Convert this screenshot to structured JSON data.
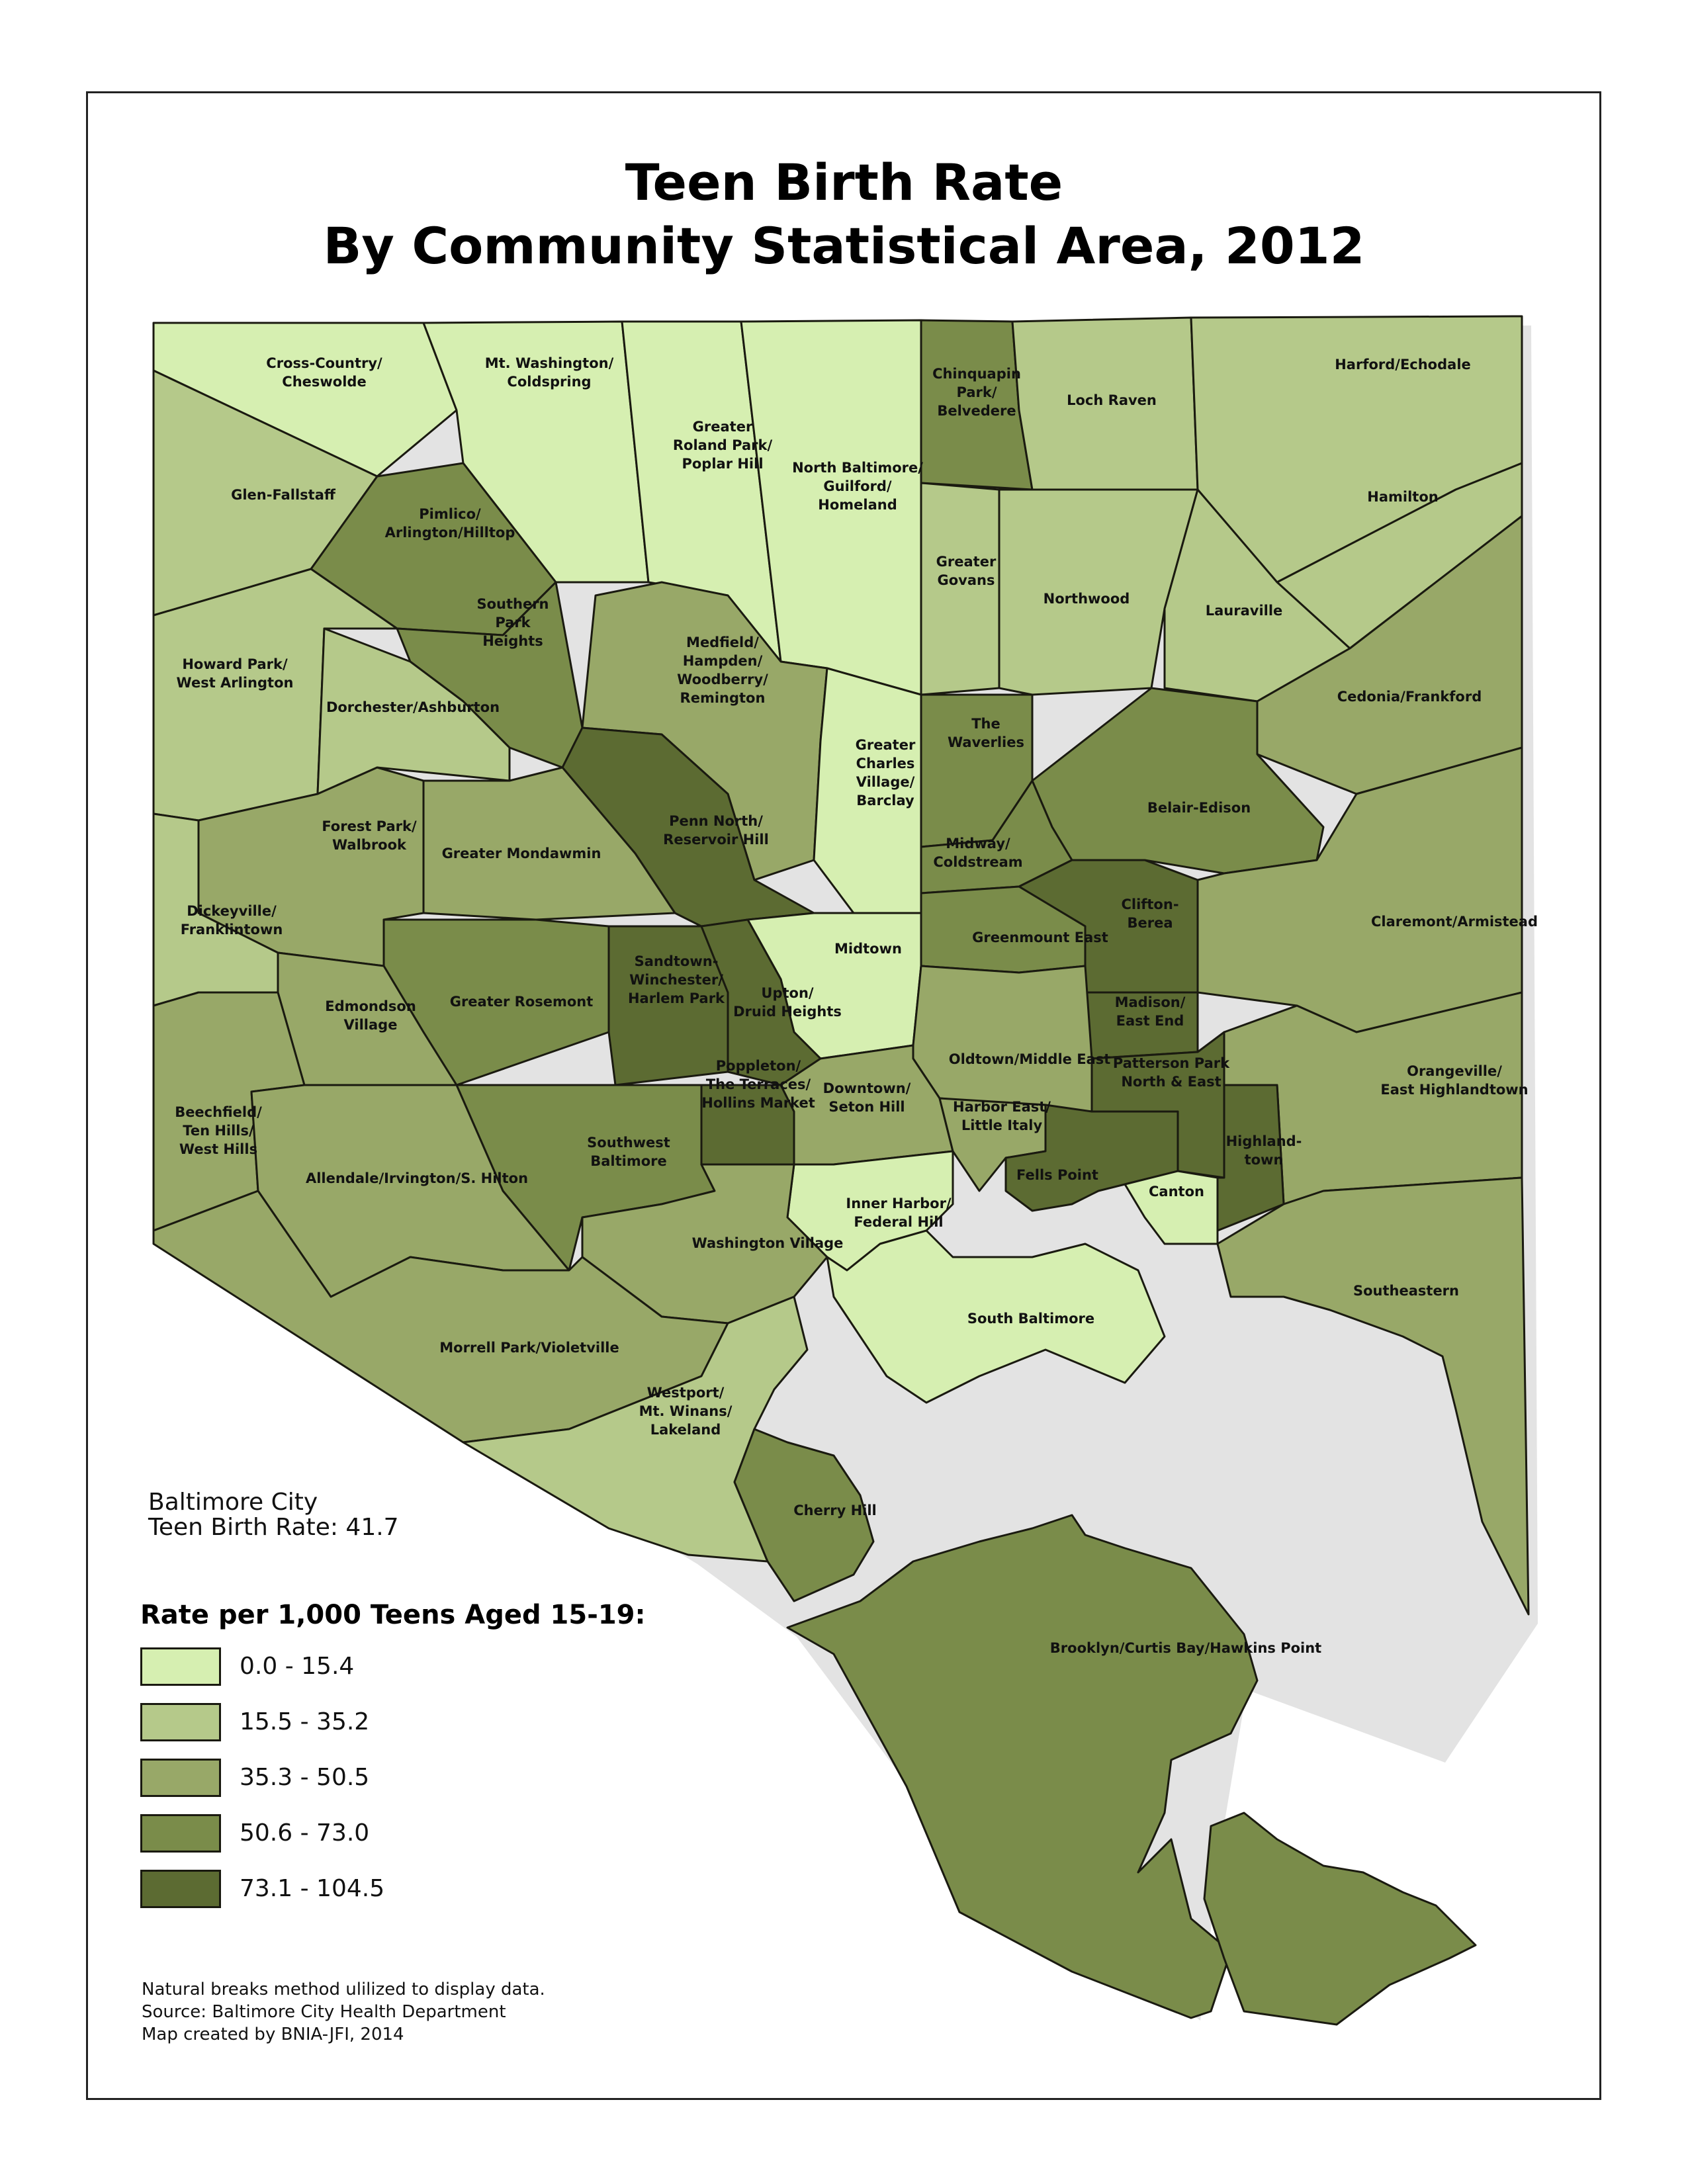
{
  "title": {
    "line1": "Teen Birth Rate",
    "line2": "By Community Statistical Area, 2012"
  },
  "city_summary": {
    "line1": "Baltimore City",
    "line2": "Teen Birth Rate: 41.7"
  },
  "legend": {
    "title": "Rate per 1,000 Teens Aged 15-19:",
    "classes": [
      {
        "label": "0.0 - 15.4",
        "color": "#d6efb1"
      },
      {
        "label": "15.5 - 35.2",
        "color": "#b5c98a"
      },
      {
        "label": "35.3 - 50.5",
        "color": "#98a868"
      },
      {
        "label": "50.6 - 73.0",
        "color": "#7a8c4a"
      },
      {
        "label": "73.1 - 104.5",
        "color": "#5c6b32"
      }
    ]
  },
  "notes": [
    "Natural breaks method ulilized to display data.",
    "Source: Baltimore City Health Department",
    "Map created by BNIA-JFI, 2014"
  ],
  "areas": [
    {
      "id": "cross-country",
      "name": [
        "Cross-Country/",
        "Cheswolde"
      ],
      "class": 0
    },
    {
      "id": "mt-washington",
      "name": [
        "Mt. Washington/",
        "Coldspring"
      ],
      "class": 0
    },
    {
      "id": "roland-park",
      "name": [
        "Greater",
        "Roland Park/",
        "Poplar Hill"
      ],
      "class": 0
    },
    {
      "id": "north-baltimore",
      "name": [
        "North Baltimore/",
        "Guilford/",
        "Homeland"
      ],
      "class": 0
    },
    {
      "id": "chinquapin",
      "name": [
        "Chinquapin",
        "Park/",
        "Belvedere"
      ],
      "class": 3
    },
    {
      "id": "loch-raven",
      "name": [
        "Loch Raven"
      ],
      "class": 1
    },
    {
      "id": "harford",
      "name": [
        "Harford/Echodale"
      ],
      "class": 1
    },
    {
      "id": "glen-fallstaff",
      "name": [
        "Glen-Fallstaff"
      ],
      "class": 1
    },
    {
      "id": "pimlico",
      "name": [
        "Pimlico/",
        "Arlington/Hilltop"
      ],
      "class": 3
    },
    {
      "id": "hamilton",
      "name": [
        "Hamilton"
      ],
      "class": 1
    },
    {
      "id": "southern-park",
      "name": [
        "Southern",
        "Park",
        "Heights"
      ],
      "class": 3
    },
    {
      "id": "govans",
      "name": [
        "Greater",
        "Govans"
      ],
      "class": 1
    },
    {
      "id": "northwood",
      "name": [
        "Northwood"
      ],
      "class": 1
    },
    {
      "id": "lauraville",
      "name": [
        "Lauraville"
      ],
      "class": 1
    },
    {
      "id": "howard-park",
      "name": [
        "Howard Park/",
        "West Arlington"
      ],
      "class": 1
    },
    {
      "id": "medfield",
      "name": [
        "Medfield/",
        "Hampden/",
        "Woodberry/",
        "Remington"
      ],
      "class": 2
    },
    {
      "id": "dorchester",
      "name": [
        "Dorchester/Ashburton"
      ],
      "class": 1
    },
    {
      "id": "cedonia",
      "name": [
        "Cedonia/Frankford"
      ],
      "class": 2
    },
    {
      "id": "waverlies",
      "name": [
        "The",
        "Waverlies"
      ],
      "class": 3
    },
    {
      "id": "charles-village",
      "name": [
        "Greater",
        "Charles",
        "Village/",
        "Barclay"
      ],
      "class": 0
    },
    {
      "id": "belair-edison",
      "name": [
        "Belair-Edison"
      ],
      "class": 3
    },
    {
      "id": "penn-north",
      "name": [
        "Penn North/",
        "Reservoir Hill"
      ],
      "class": 4
    },
    {
      "id": "forest-park",
      "name": [
        "Forest Park/",
        "Walbrook"
      ],
      "class": 2
    },
    {
      "id": "mondawmin",
      "name": [
        "Greater Mondawmin"
      ],
      "class": 2
    },
    {
      "id": "midway",
      "name": [
        "Midway/",
        "Coldstream"
      ],
      "class": 3
    },
    {
      "id": "clifton",
      "name": [
        "Clifton-",
        "Berea"
      ],
      "class": 4
    },
    {
      "id": "claremont",
      "name": [
        "Claremont/Armistead"
      ],
      "class": 2
    },
    {
      "id": "dickeyville",
      "name": [
        "Dickeyville/",
        "Franklintown"
      ],
      "class": 1
    },
    {
      "id": "midtown",
      "name": [
        "Midtown"
      ],
      "class": 0
    },
    {
      "id": "greenmount",
      "name": [
        "Greenmount East"
      ],
      "class": 3
    },
    {
      "id": "rosemont",
      "name": [
        "Greater Rosemont"
      ],
      "class": 3
    },
    {
      "id": "sandtown",
      "name": [
        "Sandtown-",
        "Winchester/",
        "Harlem Park"
      ],
      "class": 4
    },
    {
      "id": "upton",
      "name": [
        "Upton/",
        "Druid Heights"
      ],
      "class": 4
    },
    {
      "id": "madison",
      "name": [
        "Madison/",
        "East End"
      ],
      "class": 4
    },
    {
      "id": "edmondson",
      "name": [
        "Edmondson",
        "Village"
      ],
      "class": 2
    },
    {
      "id": "oldtown",
      "name": [
        "Oldtown/Middle East"
      ],
      "class": 2
    },
    {
      "id": "patterson-park",
      "name": [
        "Patterson Park",
        "North & East"
      ],
      "class": 4
    },
    {
      "id": "orangeville",
      "name": [
        "Orangeville/",
        "East Highlandtown"
      ],
      "class": 2
    },
    {
      "id": "poppleton",
      "name": [
        "Poppleton/",
        "The Terraces/",
        "Hollins Market"
      ],
      "class": 4
    },
    {
      "id": "downtown",
      "name": [
        "Downtown/",
        "Seton Hill"
      ],
      "class": 2
    },
    {
      "id": "harbor-east",
      "name": [
        "Harbor East/",
        "Little Italy"
      ],
      "class": 2
    },
    {
      "id": "beechfield",
      "name": [
        "Beechfield/",
        "Ten Hills/",
        "West Hills"
      ],
      "class": 2
    },
    {
      "id": "southwest",
      "name": [
        "Southwest",
        "Baltimore"
      ],
      "class": 3
    },
    {
      "id": "highlandtown",
      "name": [
        "Highland-",
        "town"
      ],
      "class": 4
    },
    {
      "id": "allendale",
      "name": [
        "Allendale/Irvington/S. Hilton"
      ],
      "class": 2
    },
    {
      "id": "fells-point",
      "name": [
        "Fells Point"
      ],
      "class": 4
    },
    {
      "id": "canton",
      "name": [
        "Canton"
      ],
      "class": 0
    },
    {
      "id": "inner-harbor",
      "name": [
        "Inner Harbor/",
        "Federal Hill"
      ],
      "class": 0
    },
    {
      "id": "washington-village",
      "name": [
        "Washington Village"
      ],
      "class": 2
    },
    {
      "id": "southeastern",
      "name": [
        "Southeastern"
      ],
      "class": 2
    },
    {
      "id": "south-baltimore",
      "name": [
        "South Baltimore"
      ],
      "class": 0
    },
    {
      "id": "morrell-park",
      "name": [
        "Morrell Park/Violetville"
      ],
      "class": 2
    },
    {
      "id": "westport",
      "name": [
        "Westport/",
        "Mt. Winans/",
        "Lakeland"
      ],
      "class": 1
    },
    {
      "id": "cherry-hill",
      "name": [
        "Cherry Hill"
      ],
      "class": 3
    },
    {
      "id": "brooklyn",
      "name": [
        "Brooklyn/Curtis Bay/Hawkins Point"
      ],
      "class": 3
    }
  ]
}
